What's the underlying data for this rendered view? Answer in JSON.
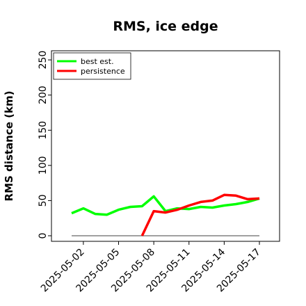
{
  "chart_data": {
    "type": "line",
    "title": "RMS, ice edge",
    "xlabel": "",
    "ylabel": "RMS distance (km)",
    "ylim": [
      0,
      260
    ],
    "y_ticks": [
      0,
      50,
      100,
      150,
      200,
      250
    ],
    "x_ticks": [
      "2025-05-02",
      "2025-05-05",
      "2025-05-08",
      "2025-05-11",
      "2025-05-14",
      "2025-05-17"
    ],
    "x": [
      "2025-05-01",
      "2025-05-02",
      "2025-05-03",
      "2025-05-04",
      "2025-05-05",
      "2025-05-06",
      "2025-05-07",
      "2025-05-08",
      "2025-05-09",
      "2025-05-10",
      "2025-05-11",
      "2025-05-12",
      "2025-05-13",
      "2025-05-14",
      "2025-05-15",
      "2025-05-16",
      "2025-05-17"
    ],
    "series": [
      {
        "name": "best est.",
        "color": "#00ff00",
        "values": [
          32,
          39,
          31,
          30,
          37,
          41,
          42,
          56,
          35,
          39,
          38,
          41,
          40,
          43,
          45,
          48,
          53
        ]
      },
      {
        "name": "persistence",
        "color": "#ff0000",
        "values": [
          null,
          null,
          null,
          null,
          null,
          null,
          0,
          35,
          33,
          37,
          43,
          48,
          50,
          58,
          57,
          52,
          53
        ]
      }
    ],
    "reference_line": {
      "value": 0,
      "color": "#808080"
    },
    "legend_position": "top-left",
    "grid": false
  }
}
